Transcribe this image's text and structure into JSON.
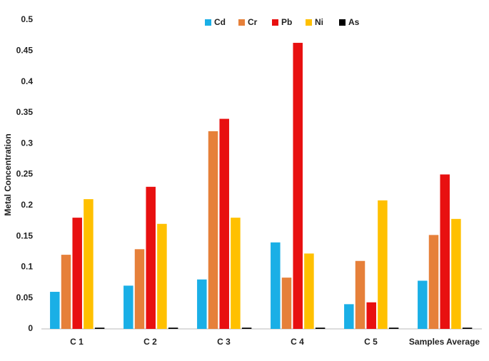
{
  "chart_data": {
    "type": "bar",
    "y_label": "Metal Concentration",
    "categories": [
      "C 1",
      "C 2",
      "C 3",
      "C 4",
      "C 5",
      "Samples Average"
    ],
    "series": [
      {
        "name": "Cd",
        "color": "#1aafe6",
        "values": [
          0.06,
          0.07,
          0.08,
          0.14,
          0.04,
          0.078
        ]
      },
      {
        "name": "Cr",
        "color": "#e6803a",
        "values": [
          0.12,
          0.129,
          0.32,
          0.083,
          0.11,
          0.152
        ]
      },
      {
        "name": "Pb",
        "color": "#e81010",
        "values": [
          0.18,
          0.23,
          0.34,
          0.463,
          0.043,
          0.25
        ]
      },
      {
        "name": "Ni",
        "color": "#ffc000",
        "values": [
          0.21,
          0.17,
          0.18,
          0.122,
          0.208,
          0.178
        ]
      },
      {
        "name": "As",
        "color": "#000000",
        "values": [
          0.002,
          0.002,
          0.002,
          0.002,
          0.002,
          0.002
        ]
      }
    ],
    "ylim": [
      0,
      0.5
    ],
    "yticks": [
      0,
      0.05,
      0.1,
      0.15,
      0.2,
      0.25,
      0.3,
      0.35,
      0.4,
      0.45,
      0.5
    ],
    "legend": "top",
    "grid": false
  }
}
